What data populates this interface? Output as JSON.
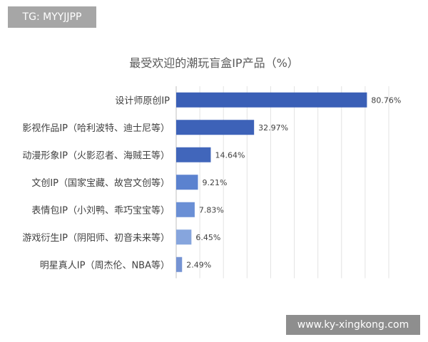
{
  "watermark_tag": "TG: MYYJJPP",
  "watermark_domain": "www.ky-xingkong.com",
  "chart_data": {
    "type": "bar",
    "orientation": "horizontal",
    "title": "最受欢迎的潮玩盲盒IP产品（%）",
    "categories": [
      "设计师原创IP",
      "影视作品IP（哈利波特、迪士尼等）",
      "动漫形象IP（火影忍者、海贼王等）",
      "文创IP（国家宝藏、故宫文创等）",
      "表情包IP（小刘鸭、乖巧宝宝等）",
      "游戏衍生IP（阴阳师、初音未来等）",
      "明星真人IP（周杰伦、NBA等）"
    ],
    "values": [
      80.76,
      32.97,
      14.64,
      9.21,
      7.83,
      6.45,
      2.49
    ],
    "value_labels": [
      "80.76%",
      "32.97%",
      "14.64%",
      "9.21%",
      "7.83%",
      "6.45%",
      "2.49%"
    ],
    "xlim": [
      0,
      90
    ],
    "grid": true,
    "bar_colors": [
      "#3a5fb6",
      "#3d62b8",
      "#4166bb",
      "#5b82cf",
      "#6a8fd5",
      "#86a5dd",
      "#7593d3"
    ]
  }
}
